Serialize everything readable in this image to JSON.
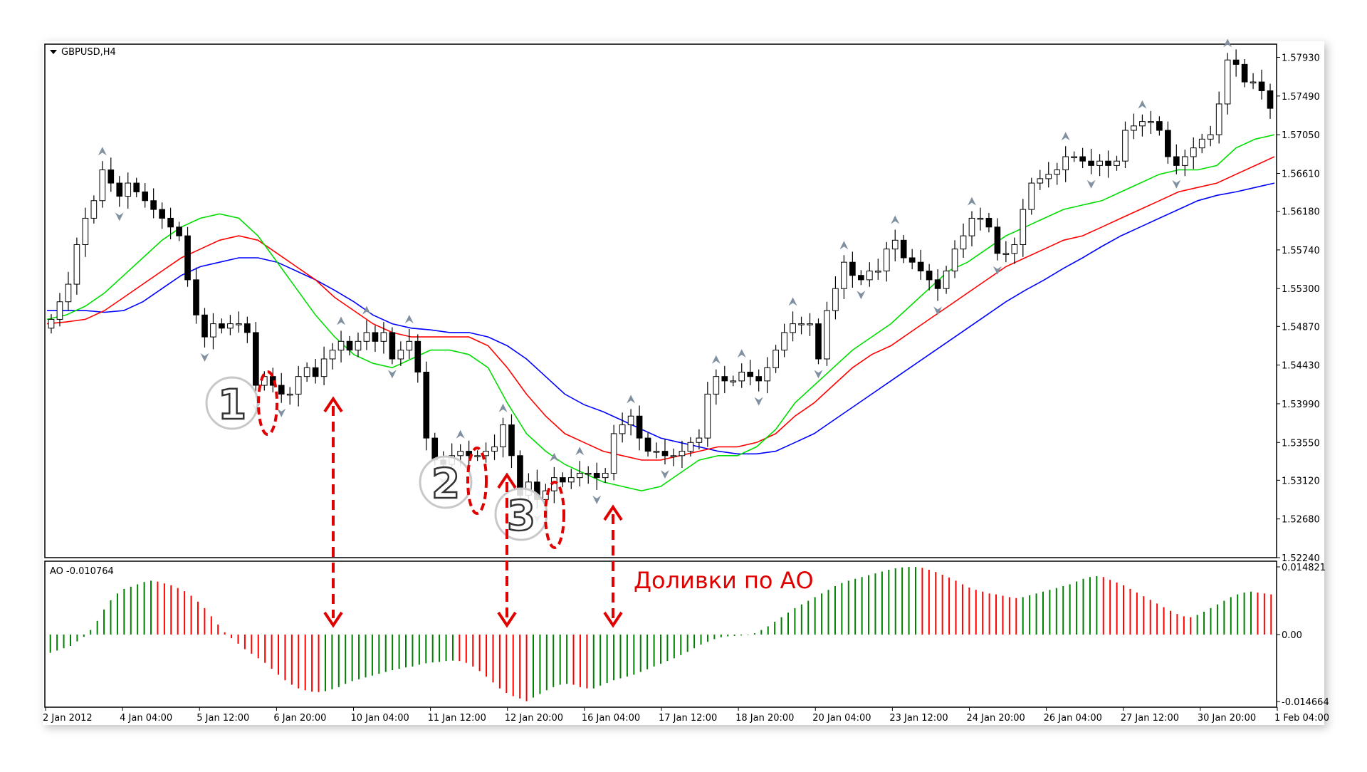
{
  "window": {
    "symbol_label": "GBPUSD,H4",
    "indicator_label": "AO -0.010764"
  },
  "annotation": {
    "text": "Доливки по АО",
    "markers": [
      "1",
      "2",
      "3"
    ]
  },
  "colors": {
    "background": "#ffffff",
    "frame": "#000000",
    "bull_candle_fill": "#ffffff",
    "bear_candle_fill": "#000000",
    "candle_outline": "#000000",
    "jaw": "#0000ff",
    "teeth": "#ff0000",
    "lips": "#00dd00",
    "ao_up": "#008000",
    "ao_down": "#ff0000",
    "annotation": "#ff0000",
    "fractal": "#8090a0"
  },
  "icons": {
    "symbol_dropdown": "triangle-down-icon",
    "fractal_up": "arrow-up-icon",
    "fractal_down": "arrow-down-icon"
  },
  "chart_data": [
    {
      "type": "candlestick",
      "series": [
        {
          "name": "GBPUSD,H4"
        }
      ],
      "ylim": [
        1.5224,
        1.5808
      ],
      "y_ticks": [
        "1.57930",
        "1.57490",
        "1.57050",
        "1.56610",
        "1.56180",
        "1.55740",
        "1.55300",
        "1.54870",
        "1.54430",
        "1.53990",
        "1.53550",
        "1.53120",
        "1.52680",
        "1.52240"
      ],
      "x_ticks": [
        "2 Jan 2012",
        "4 Jan 04:00",
        "5 Jan 12:00",
        "6 Jan 20:00",
        "10 Jan 04:00",
        "11 Jan 12:00",
        "12 Jan 20:00",
        "16 Jan 04:00",
        "17 Jan 12:00",
        "18 Jan 20:00",
        "20 Jan 04:00",
        "23 Jan 12:00",
        "24 Jan 20:00",
        "26 Jan 04:00",
        "27 Jan 12:00",
        "30 Jan 20:00",
        "1 Feb 04:00"
      ],
      "closes": [
        1.5495,
        1.5515,
        1.5535,
        1.558,
        1.561,
        1.563,
        1.5665,
        1.565,
        1.5635,
        1.565,
        1.564,
        1.563,
        1.562,
        1.561,
        1.56,
        1.559,
        1.554,
        1.55,
        1.5475,
        1.549,
        1.5485,
        1.549,
        1.549,
        1.548,
        1.542,
        1.543,
        1.542,
        1.541,
        1.541,
        1.543,
        1.544,
        1.543,
        1.545,
        1.546,
        1.547,
        1.546,
        1.547,
        1.548,
        1.547,
        1.548,
        1.545,
        1.546,
        1.547,
        1.5435,
        1.536,
        1.5335,
        1.533,
        1.534,
        1.5345,
        1.534,
        1.534,
        1.5345,
        1.535,
        1.5375,
        1.534,
        1.5295,
        1.531,
        1.529,
        1.53,
        1.5315,
        1.531,
        1.5315,
        1.532,
        1.532,
        1.5315,
        1.532,
        1.5365,
        1.5375,
        1.5385,
        1.536,
        1.5345,
        1.5345,
        1.534,
        1.534,
        1.5345,
        1.5355,
        1.536,
        1.541,
        1.543,
        1.5425,
        1.5425,
        1.5435,
        1.543,
        1.5425,
        1.544,
        1.546,
        1.548,
        1.549,
        1.549,
        1.549,
        1.545,
        1.5505,
        1.553,
        1.556,
        1.5545,
        1.554,
        1.555,
        1.555,
        1.5575,
        1.5585,
        1.5565,
        1.556,
        1.555,
        1.554,
        1.553,
        1.555,
        1.5575,
        1.559,
        1.561,
        1.561,
        1.56,
        1.557,
        1.557,
        1.558,
        1.562,
        1.565,
        1.5655,
        1.566,
        1.5665,
        1.568,
        1.568,
        1.5675,
        1.567,
        1.5675,
        1.567,
        1.5675,
        1.571,
        1.5715,
        1.572,
        1.572,
        1.571,
        1.568,
        1.567,
        1.568,
        1.569,
        1.57,
        1.5705,
        1.574,
        1.579,
        1.5785,
        1.5765,
        1.5765,
        1.5755,
        1.5735
      ],
      "lips_green": [
        1.5495,
        1.55,
        1.551,
        1.5525,
        1.5545,
        1.5565,
        1.5585,
        1.56,
        1.561,
        1.5615,
        1.561,
        1.559,
        1.556,
        1.553,
        1.55,
        1.5475,
        1.5455,
        1.5445,
        1.544,
        1.545,
        1.546,
        1.546,
        1.5455,
        1.544,
        1.54,
        1.5365,
        1.5345,
        1.533,
        1.532,
        1.531,
        1.5305,
        1.53,
        1.5305,
        1.532,
        1.5335,
        1.534,
        1.534,
        1.535,
        1.537,
        1.54,
        1.542,
        1.544,
        1.546,
        1.5475,
        1.549,
        1.551,
        1.553,
        1.555,
        1.556,
        1.5575,
        1.559,
        1.56,
        1.561,
        1.562,
        1.5625,
        1.563,
        1.564,
        1.565,
        1.566,
        1.5665,
        1.5665,
        1.567,
        1.569,
        1.57,
        1.5705
      ],
      "teeth_red": [
        1.549,
        1.5492,
        1.5495,
        1.5505,
        1.552,
        1.5535,
        1.555,
        1.5565,
        1.5575,
        1.5585,
        1.559,
        1.5585,
        1.557,
        1.5555,
        1.554,
        1.552,
        1.5505,
        1.549,
        1.548,
        1.5475,
        1.5475,
        1.5475,
        1.5475,
        1.5465,
        1.544,
        1.541,
        1.5385,
        1.5365,
        1.5355,
        1.5345,
        1.534,
        1.5335,
        1.5335,
        1.534,
        1.5345,
        1.535,
        1.535,
        1.5355,
        1.5365,
        1.5385,
        1.54,
        1.542,
        1.544,
        1.5455,
        1.5465,
        1.548,
        1.5495,
        1.551,
        1.5525,
        1.554,
        1.5555,
        1.5565,
        1.5575,
        1.5585,
        1.559,
        1.56,
        1.561,
        1.562,
        1.563,
        1.564,
        1.5645,
        1.565,
        1.566,
        1.567,
        1.568
      ],
      "jaw_blue": [
        1.5505,
        1.5505,
        1.5505,
        1.5503,
        1.5505,
        1.5515,
        1.553,
        1.5545,
        1.5555,
        1.556,
        1.5565,
        1.5565,
        1.556,
        1.555,
        1.554,
        1.5528,
        1.5515,
        1.55,
        1.549,
        1.5485,
        1.5483,
        1.548,
        1.548,
        1.5475,
        1.5465,
        1.545,
        1.543,
        1.541,
        1.5398,
        1.539,
        1.538,
        1.537,
        1.536,
        1.5355,
        1.535,
        1.5345,
        1.5342,
        1.5342,
        1.5345,
        1.5355,
        1.5365,
        1.538,
        1.5395,
        1.541,
        1.5425,
        1.544,
        1.5455,
        1.547,
        1.5485,
        1.55,
        1.5515,
        1.5528,
        1.554,
        1.5553,
        1.5565,
        1.5578,
        1.559,
        1.56,
        1.561,
        1.562,
        1.563,
        1.5636,
        1.564,
        1.5645,
        1.565
      ]
    },
    {
      "type": "bar",
      "series": [
        {
          "name": "AO"
        }
      ],
      "ylim": [
        -0.014664,
        0.014821
      ],
      "y_ticks": [
        "0.014821",
        "0.00",
        "-0.014664"
      ],
      "values": [
        -0.004,
        -0.0035,
        -0.003,
        -0.0025,
        -0.0015,
        -0.0005,
        0.001,
        0.003,
        0.0055,
        0.0075,
        0.009,
        0.01,
        0.0105,
        0.011,
        0.0115,
        0.0118,
        0.0116,
        0.0112,
        0.0108,
        0.0102,
        0.0095,
        0.0085,
        0.0072,
        0.0058,
        0.004,
        0.0022,
        0.0005,
        -0.0008,
        -0.002,
        -0.0032,
        -0.0042,
        -0.0052,
        -0.0062,
        -0.0075,
        -0.0088,
        -0.01,
        -0.011,
        -0.0118,
        -0.0122,
        -0.0125,
        -0.0126,
        -0.0124,
        -0.012,
        -0.0115,
        -0.0108,
        -0.0102,
        -0.0098,
        -0.0094,
        -0.009,
        -0.0086,
        -0.0082,
        -0.0078,
        -0.0075,
        -0.0072,
        -0.007,
        -0.0066,
        -0.0063,
        -0.0061,
        -0.006,
        -0.0058,
        -0.0057,
        -0.0058,
        -0.0062,
        -0.007,
        -0.008,
        -0.0092,
        -0.0105,
        -0.0118,
        -0.0128,
        -0.0135,
        -0.014,
        -0.0146,
        -0.0138,
        -0.013,
        -0.0122,
        -0.0115,
        -0.011,
        -0.0108,
        -0.011,
        -0.0115,
        -0.0118,
        -0.0118,
        -0.0112,
        -0.0106,
        -0.01,
        -0.0096,
        -0.0092,
        -0.0088,
        -0.0082,
        -0.0076,
        -0.007,
        -0.0064,
        -0.0058,
        -0.0052,
        -0.0045,
        -0.0038,
        -0.003,
        -0.0022,
        -0.0016,
        -0.001,
        -0.0006,
        -0.0004,
        -0.0003,
        -0.0002,
        -0.0001,
        0.0003,
        0.001,
        0.0018,
        0.0028,
        0.0038,
        0.0048,
        0.0058,
        0.0066,
        0.0074,
        0.0082,
        0.009,
        0.0098,
        0.0106,
        0.0113,
        0.0118,
        0.0122,
        0.0126,
        0.013,
        0.0134,
        0.0138,
        0.0142,
        0.0145,
        0.0147,
        0.0148,
        0.0148,
        0.0146,
        0.0142,
        0.0137,
        0.0131,
        0.0125,
        0.0118,
        0.011,
        0.0103,
        0.0098,
        0.0094,
        0.009,
        0.0088,
        0.0085,
        0.0082,
        0.008,
        0.0082,
        0.0086,
        0.009,
        0.0094,
        0.0098,
        0.0102,
        0.0106,
        0.011,
        0.0116,
        0.0122,
        0.0126,
        0.0128,
        0.0126,
        0.012,
        0.0114,
        0.0108,
        0.01,
        0.0092,
        0.0084,
        0.0076,
        0.0068,
        0.006,
        0.0052,
        0.0045,
        0.004,
        0.0038,
        0.0043,
        0.005,
        0.0058,
        0.0066,
        0.0074,
        0.0082,
        0.0088,
        0.0092,
        0.0094,
        0.0092,
        0.009,
        0.0088
      ]
    }
  ]
}
